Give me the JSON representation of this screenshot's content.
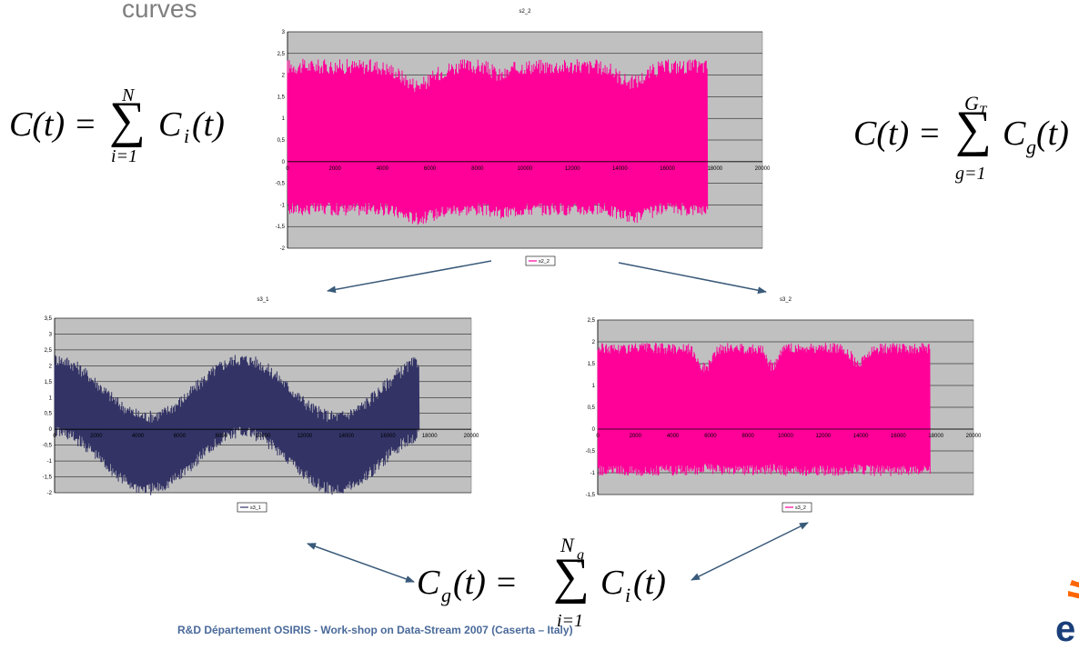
{
  "slide": {
    "heading": "curves",
    "footer": "R&D Département OSIRIS - Work-shop on Data-Stream 2007 (Caserta – Italy)",
    "logo_letter": "e"
  },
  "formulas": {
    "left": {
      "lhs": "C(t) = ",
      "sum": "∑",
      "top": "N",
      "bottom": "i=1",
      "term": "C",
      "term_sub": "i",
      "term_tail": "(t)"
    },
    "right": {
      "lhs": "C(t) = ",
      "sum": "∑",
      "top": "G",
      "top_sub": "T",
      "bottom": "g=1",
      "term": "C",
      "term_sub": "g",
      "term_tail": "(t)"
    },
    "bottom": {
      "lhs": "C",
      "lhs_sub": "g",
      "lhs_tail": "(t) = ",
      "sum": "∑",
      "top": "N",
      "top_sub": "g",
      "bottom": "i=1",
      "term": "C",
      "term_sub": "i",
      "term_tail": "(t)"
    }
  },
  "colors": {
    "plot_bg": "#c0c0c0",
    "series_pink": "#ff0099",
    "series_navy": "#333366",
    "arrow": "#3a5a7a",
    "grid": "#000000"
  },
  "chart_data": [
    {
      "type": "line",
      "title": "s2_2",
      "series": [
        {
          "name": "s2_2",
          "pattern": "dense oscillation, ~±1.8 around 0.5, envelope dips near 5500, 9000 and 14500"
        }
      ],
      "x_ticks": [
        "0",
        "2000",
        "4000",
        "6000",
        "8000",
        "10000",
        "12000",
        "14000",
        "16000",
        "18000",
        "20000"
      ],
      "y_ticks": [
        "3",
        "2,5",
        "2",
        "1,5",
        "1",
        "0,5",
        "0",
        "-0,5",
        "-1",
        "-1,5",
        "-2"
      ],
      "xlim": [
        0,
        20000
      ],
      "ylim": [
        -2,
        3
      ],
      "x_end": 17700,
      "grid": true,
      "legend": "bottom"
    },
    {
      "type": "line",
      "title": "s3_1",
      "series": [
        {
          "name": "s3_1",
          "pattern": "oscillation with slow wave: high near 0, low near 5500, high near 9000, low near 14000, high near 17500"
        }
      ],
      "x_ticks": [
        "0",
        "2000",
        "4000",
        "6000",
        "8000",
        "10000",
        "12000",
        "14000",
        "16000",
        "18000",
        "20000"
      ],
      "y_ticks": [
        "3,5",
        "3",
        "2,5",
        "2",
        "1,5",
        "1",
        "0,5",
        "0",
        "-0,5",
        "-1",
        "-1,5",
        "-2"
      ],
      "xlim": [
        0,
        20000
      ],
      "ylim": [
        -2,
        3.5
      ],
      "x_end": 17500,
      "grid": true,
      "legend": "bottom"
    },
    {
      "type": "line",
      "title": "s3_2",
      "series": [
        {
          "name": "s3_2",
          "pattern": "dense oscillation between about -1.1 and 2, narrower bands near 5700, 9300 and 13900"
        }
      ],
      "x_ticks": [
        "0",
        "2000",
        "4000",
        "6000",
        "8000",
        "10000",
        "12000",
        "14000",
        "16000",
        "18000",
        "20000"
      ],
      "y_ticks": [
        "2,5",
        "2",
        "1,5",
        "1",
        "0,5",
        "0",
        "-0,5",
        "-1",
        "-1,5"
      ],
      "xlim": [
        0,
        20000
      ],
      "ylim": [
        -1.5,
        2.5
      ],
      "x_end": 17700,
      "grid": true,
      "legend": "bottom"
    }
  ]
}
